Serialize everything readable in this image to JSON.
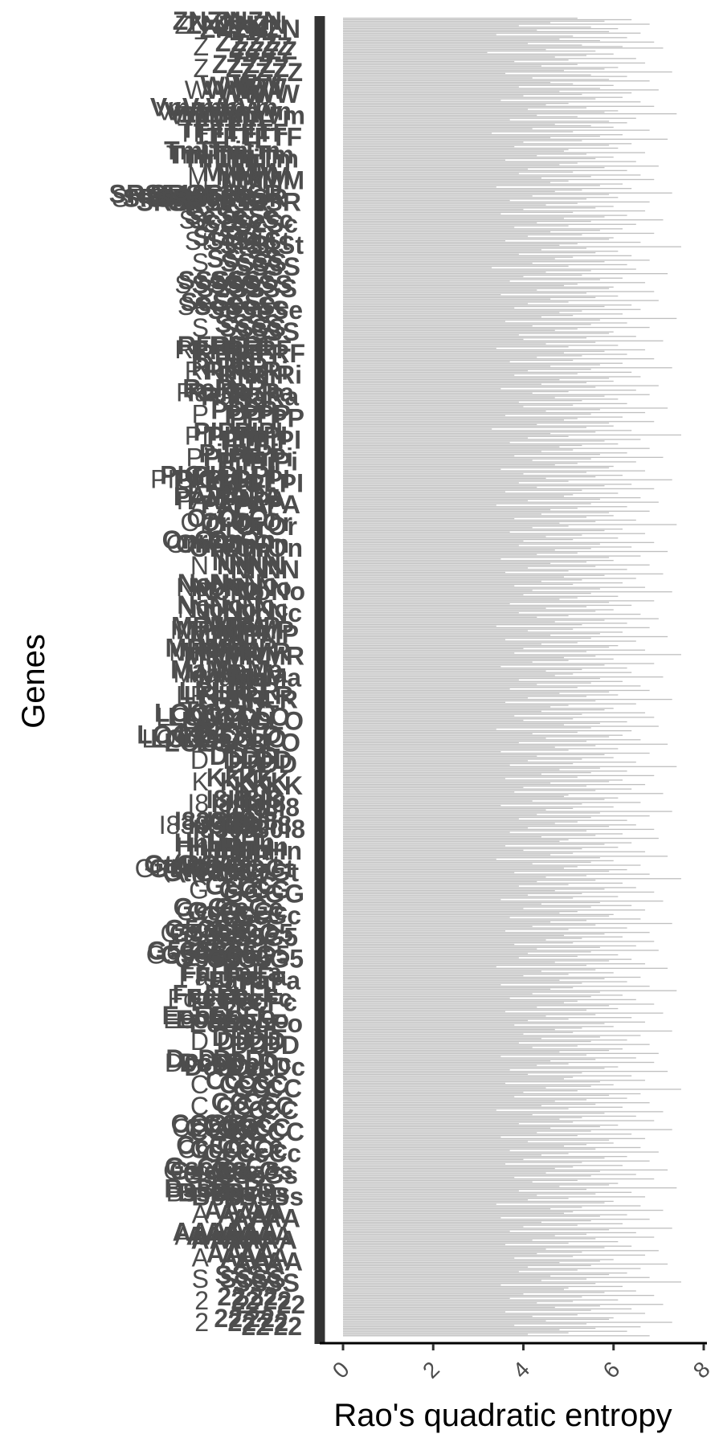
{
  "chart_data": {
    "type": "bar",
    "orientation": "horizontal",
    "title": "",
    "xlabel": "Rao's quadratic entropy",
    "ylabel": "Genes",
    "xlim": [
      0,
      8
    ],
    "x_ticks": [
      "0",
      "2",
      "4",
      "6",
      "8"
    ],
    "grid": false,
    "legend": "none",
    "bar_color": "#bfbfbf",
    "label_color": "#4d4d4d",
    "visible_gene_labels": [
      "ZN",
      "Z",
      "Z",
      "W",
      "Vmn",
      "TF",
      "Tmi",
      "M",
      "SRSF10",
      "Sc",
      "St",
      "S",
      "SS",
      "Se",
      "S",
      "RF",
      "Ri",
      "Ra",
      "P",
      "PI",
      "Pi",
      "PIGL",
      "PA",
      "Or",
      "Onr",
      "N",
      "No",
      "Nc",
      "MP",
      "MR",
      "Ma",
      "LR",
      "LOC",
      "LOC3",
      "D",
      "K",
      "I8",
      "I830",
      "Hn",
      "Gt(RO",
      "G",
      "Gc",
      "G53",
      "G530",
      "Fa",
      "Fcc",
      "Eoo",
      "D",
      "Dcc",
      "C",
      "C",
      "CC",
      "Cc",
      "Gsc",
      "Bss",
      "A",
      "AA",
      "A",
      "S",
      "2",
      "2"
    ],
    "values": [
      5.2,
      6.4,
      5.8,
      4.6,
      6.8,
      3.9,
      5.5,
      6.1,
      4.3,
      5.9,
      6.6,
      3.4,
      5.1,
      6.3,
      4.8,
      5.7,
      6.9,
      4.1,
      5.3,
      6.2,
      7.1,
      4.5,
      5.6,
      3.2,
      6.0,
      5.4,
      4.7,
      6.5,
      5.0,
      3.8,
      6.7,
      5.2,
      4.4,
      6.1,
      5.8,
      4.9,
      7.3,
      3.6,
      5.5,
      6.3,
      4.2,
      5.9,
      6.8,
      4.6,
      5.1,
      6.0,
      3.9,
      5.7,
      7.0,
      4.8,
      6.4,
      5.3,
      4.0,
      6.2,
      5.6,
      3.5,
      6.6,
      5.0,
      4.5,
      6.9,
      5.4,
      4.1,
      6.1,
      5.8,
      7.4,
      4.3,
      5.2,
      6.5,
      3.7,
      5.9,
      6.3,
      4.7,
      5.5,
      6.0,
      4.2,
      6.8,
      5.1,
      3.3,
      6.2,
      5.7,
      4.6,
      7.2,
      5.3,
      4.0,
      6.4,
      5.9,
      3.8,
      6.1,
      5.0,
      4.9,
      6.7,
      5.4,
      4.3,
      6.0,
      5.6,
      3.6,
      6.5,
      5.2,
      4.8,
      7.0,
      5.8,
      4.1,
      6.3,
      5.1,
      3.9,
      6.6,
      5.5,
      4.4,
      6.9,
      5.0,
      4.6,
      6.2,
      5.7,
      3.4,
      6.4,
      5.3,
      4.7,
      7.3,
      5.9,
      4.2,
      6.1,
      5.4,
      3.7,
      6.8,
      5.2,
      4.5,
      6.0,
      5.6,
      4.0,
      6.7,
      5.1,
      3.5,
      6.3,
      5.8,
      4.9,
      7.1,
      5.5,
      4.3,
      6.5,
      5.0,
      3.8,
      6.2,
      5.7,
      4.6,
      6.9,
      5.3,
      4.1,
      6.0,
      5.9,
      3.6,
      6.6,
      5.2,
      4.8,
      7.5,
      5.4,
      4.4,
      6.1,
      5.6,
      3.9,
      6.4,
      5.1,
      4.7,
      6.8,
      5.8,
      4.2,
      6.3,
      5.0,
      3.3,
      6.5,
      5.5,
      4.5,
      7.2,
      5.3,
      4.0,
      6.2,
      5.7,
      3.7,
      6.7,
      5.2,
      4.9,
      6.0,
      5.9,
      4.3,
      6.9,
      5.4,
      3.5,
      6.1,
      5.6,
      4.6,
      7.0,
      5.0,
      4.1,
      6.4,
      5.8,
      3.8,
      6.6,
      5.3,
      4.8,
      6.2,
      5.1,
      4.4,
      7.4,
      5.7,
      3.6,
      6.3,
      5.5,
      4.2,
      6.8,
      5.2,
      4.7,
      6.0,
      5.9,
      3.9,
      6.5,
      5.4,
      4.0,
      7.1,
      5.6,
      4.5,
      6.1,
      5.0,
      3.4,
      6.7,
      5.8,
      4.9,
      6.3,
      5.3,
      4.3,
      6.9,
      5.1,
      3.7,
      6.2,
      5.7,
      4.6,
      7.3,
      5.5,
      4.1,
      6.4,
      5.2,
      3.8,
      6.6,
      5.9,
      4.8,
      6.0,
      5.4,
      4.4,
      7.0,
      5.6,
      3.5,
      6.5,
      5.0,
      4.2,
      6.8,
      5.8,
      4.7,
      6.1,
      5.3,
      3.9,
      6.3,
      5.1,
      4.0,
      7.2,
      5.7,
      4.5,
      6.7,
      5.5,
      3.6,
      6.2,
      5.2,
      4.9,
      6.9,
      5.9,
      4.3,
      6.0,
      5.4,
      3.3,
      6.4,
      5.6,
      4.6,
      7.5,
      5.0,
      4.1,
      6.6,
      5.8,
      3.7,
      6.1,
      5.3,
      4.8,
      6.8,
      5.1,
      4.4,
      6.3,
      5.7,
      3.8,
      7.1,
      5.5,
      4.2,
      6.5,
      5.2,
      4.7,
      6.0,
      5.9,
      3.5,
      6.7,
      5.4,
      4.0,
      6.2,
      5.6,
      4.5,
      7.3,
      5.0,
      3.9,
      6.4,
      5.8,
      4.3,
      6.9,
      5.3,
      3.6,
      6.1,
      5.1,
      4.9,
      6.6,
      5.7,
      4.1,
      7.0,
      5.5,
      3.4,
      6.3,
      5.2,
      4.6,
      6.8,
      5.9,
      4.4,
      6.0,
      5.4,
      3.8,
      6.5,
      5.6,
      4.8,
      7.4,
      5.0,
      4.2,
      6.2,
      5.8,
      3.7,
      6.7,
      5.3,
      4.5,
      6.1,
      5.1,
      4.0,
      6.9,
      5.7,
      3.9,
      6.4,
      5.5,
      4.7,
      7.2,
      5.2,
      4.3,
      6.6,
      5.9,
      3.5,
      6.0,
      5.4,
      4.6,
      6.8,
      5.6,
      4.1,
      6.3,
      5.0,
      3.6,
      7.1,
      5.8,
      4.9,
      6.5,
      5.3,
      4.4,
      6.2,
      5.1,
      3.8,
      6.7,
      5.7,
      4.2,
      7.3,
      5.5,
      4.0,
      6.1,
      5.2,
      4.8,
      6.9,
      5.9,
      3.7,
      6.4,
      5.4,
      4.5,
      6.0,
      5.6,
      3.9,
      6.6,
      5.0,
      4.3,
      7.0,
      5.8,
      4.7,
      6.3,
      5.3,
      3.4,
      6.8,
      5.1,
      4.1,
      6.2,
      5.7,
      4.6,
      7.2,
      5.5,
      3.6,
      6.5,
      5.2,
      4.4,
      6.1,
      5.9,
      4.0,
      6.7,
      5.4,
      3.8,
      7.5,
      5.6,
      4.9,
      6.0,
      5.0,
      4.2,
      6.9,
      5.8,
      3.5,
      6.3,
      5.3,
      4.5,
      6.4,
      5.1,
      4.7,
      7.1,
      5.7,
      3.9,
      6.2,
      5.5,
      4.3,
      6.6,
      5.2,
      3.7,
      6.8,
      5.9,
      4.8,
      6.1,
      5.4,
      4.1,
      7.3,
      5.6,
      3.6,
      6.5,
      5.0,
      4.6,
      6.0,
      5.8,
      4.4,
      6.7,
      5.3,
      3.8,
      6.9,
      5.1,
      4.0,
      6.3,
      5.7,
      4.9,
      7.0,
      5.5,
      3.4,
      6.4,
      5.2,
      4.2,
      6.2,
      5.9,
      4.5,
      6.6,
      5.4,
      3.9,
      7.2,
      5.6,
      4.7,
      6.1,
      5.0,
      3.5,
      6.8,
      5.8,
      4.3,
      6.0,
      5.3,
      4.1,
      6.5,
      5.1,
      3.7,
      7.4,
      5.7,
      4.8,
      6.3,
      5.5,
      4.4,
      6.9,
      5.2,
      3.6,
      6.2,
      5.9,
      4.6,
      6.7,
      5.4,
      4.0,
      6.4,
      5.6,
      3.8,
      7.1,
      5.0,
      4.9,
      6.1,
      5.8,
      4.2,
      6.6,
      5.3,
      3.5,
      6.0,
      5.1,
      4.5,
      7.3,
      5.7,
      4.3,
      6.8,
      5.5,
      3.9,
      6.3,
      5.2,
      4.7,
      6.5,
      5.9,
      4.1,
      6.9,
      5.4,
      3.7,
      6.2,
      5.6,
      4.4,
      7.0,
      5.0,
      4.8,
      6.4,
      5.8,
      3.6,
      6.1,
      5.3,
      4.0,
      6.7,
      5.1,
      4.6,
      7.2,
      5.7,
      3.4,
      6.0,
      5.5,
      4.2,
      6.6,
      5.2,
      4.9,
      6.3,
      5.9,
      3.8,
      6.8,
      5.4,
      4.5,
      7.5,
      5.6,
      4.3,
      6.2,
      5.0,
      3.9,
      6.5,
      5.8,
      4.7,
      6.9,
      5.3,
      4.1,
      6.1,
      5.1,
      3.5,
      7.1,
      5.7,
      4.4,
      6.4,
      5.5,
      4.0,
      6.7,
      5.2,
      4.8,
      6.0,
      5.9,
      3.7,
      6.6,
      5.4,
      4.6,
      7.3,
      5.6,
      4.2,
      6.3,
      5.0,
      3.6,
      6.8,
      5.8,
      4.9,
      6.2,
      5.3,
      4.5,
      6.9,
      5.1,
      3.8,
      6.5,
      5.7,
      4.3,
      7.0,
      5.5,
      4.1,
      6.1,
      5.2,
      3.9,
      6.4,
      5.9,
      4.7,
      6.7,
      5.4,
      3.4,
      7.2,
      5.6,
      4.4,
      6.0,
      5.0,
      4.0,
      6.6,
      5.8,
      4.8,
      6.3,
      5.3,
      3.5,
      6.8,
      5.1,
      4.6,
      7.4,
      5.7,
      4.2,
      6.2,
      5.5,
      3.7,
      6.5,
      5.2,
      4.9,
      6.9,
      5.9,
      4.3,
      6.1,
      5.4,
      3.6,
      7.1,
      5.6,
      4.5,
      6.4,
      5.0,
      4.1,
      6.7,
      5.8,
      3.8,
      6.0,
      5.3,
      4.7,
      7.3,
      5.1,
      4.0,
      6.6,
      5.7,
      4.4,
      6.3,
      5.5,
      3.9,
      6.8,
      5.2,
      4.2,
      6.2,
      5.9,
      4.8,
      7.0,
      5.4,
      3.5,
      6.5,
      5.6,
      4.6,
      6.9,
      5.0,
      4.3,
      6.1,
      5.8,
      3.7,
      7.2,
      5.3,
      4.1,
      6.4,
      5.1,
      4.9,
      6.7,
      5.7,
      3.6,
      6.0,
      5.5,
      4.5,
      7.5,
      5.2,
      4.0,
      6.6,
      5.9,
      3.8,
      6.3,
      5.4,
      4.7,
      6.8,
      5.6,
      4.4,
      6.2,
      5.0,
      3.4,
      7.1,
      5.8,
      4.2,
      6.5,
      5.3,
      4.8,
      6.9,
      5.1,
      3.9,
      6.1,
      5.7,
      4.6,
      7.3,
      5.5,
      4.3,
      6.4,
      5.2,
      3.5,
      6.7,
      5.9,
      4.1,
      6.0,
      5.4,
      4.9,
      6.6,
      5.6,
      3.7,
      7.0,
      5.0,
      4.4,
      6.3,
      5.8,
      4.0,
      6.8,
      5.3,
      3.6,
      6.2,
      5.1,
      4.7,
      7.2,
      5.7,
      4.5,
      6.5,
      5.5,
      3.8,
      6.9,
      5.2,
      4.2,
      6.1,
      5.9,
      4.8,
      7.4,
      5.4,
      3.9,
      6.4,
      5.6,
      4.3,
      6.7,
      5.0,
      4.1,
      6.0,
      5.8,
      3.4,
      6.6,
      5.3,
      4.6,
      7.1,
      5.1,
      4.9,
      6.3,
      5.7,
      3.5,
      6.8,
      5.5,
      4.4,
      6.2,
      5.2,
      4.0,
      7.3,
      5.9,
      3.7,
      6.5,
      5.4,
      4.7,
      6.9,
      5.6,
      4.2,
      6.1,
      5.0,
      3.6,
      6.4,
      5.8,
      4.5,
      7.0,
      5.3,
      4.3,
      6.7,
      5.1,
      3.8,
      6.0,
      5.7,
      4.8,
      7.2,
      5.5,
      4.1,
      6.6,
      5.2,
      3.9,
      6.3,
      5.9,
      4.6,
      6.8,
      5.4,
      4.4,
      7.5,
      5.6,
      3.5,
      6.2,
      5.0,
      4.9,
      6.5,
      5.8,
      4.0,
      6.9,
      5.3,
      3.7,
      6.1,
      5.1,
      4.3,
      7.1,
      5.7,
      4.7,
      6.4,
      5.5,
      3.6,
      6.7,
      5.2,
      4.2,
      6.0,
      5.9,
      4.5,
      7.3,
      5.4,
      3.8,
      6.6,
      5.6,
      4.8,
      6.3,
      5.0,
      4.1,
      6.8
    ]
  }
}
